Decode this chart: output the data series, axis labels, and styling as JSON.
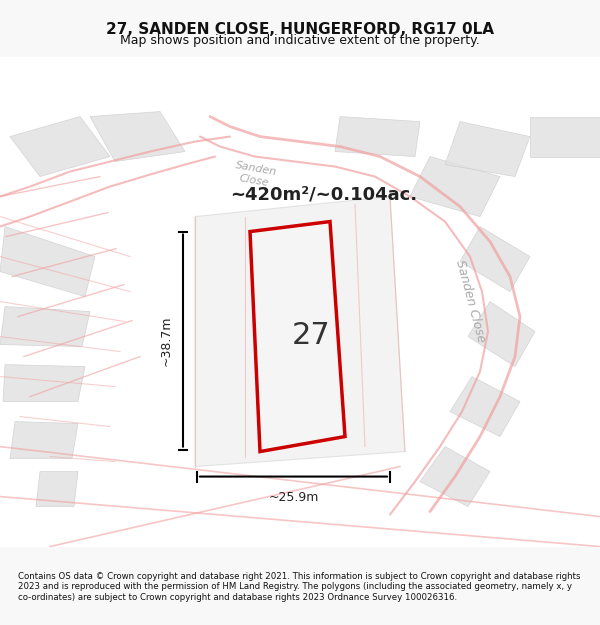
{
  "title": "27, SANDEN CLOSE, HUNGERFORD, RG17 0LA",
  "subtitle": "Map shows position and indicative extent of the property.",
  "area_label": "~420m²/~0.104ac.",
  "width_label": "~25.9m",
  "height_label": "~38.7m",
  "number_label": "27",
  "footer": "Contains OS data © Crown copyright and database right 2021. This information is subject to Crown copyright and database rights 2023 and is reproduced with the permission of HM Land Registry. The polygons (including the associated geometry, namely x, y co-ordinates) are subject to Crown copyright and database rights 2023 Ordnance Survey 100026316.",
  "bg_color": "#f8f8f8",
  "map_bg": "#ffffff",
  "road_color": "#f0a0a0",
  "plot_color": "#e8e8e8",
  "highlight_color": "#cc0000",
  "text_color": "#333333",
  "road_label_color": "#888888"
}
